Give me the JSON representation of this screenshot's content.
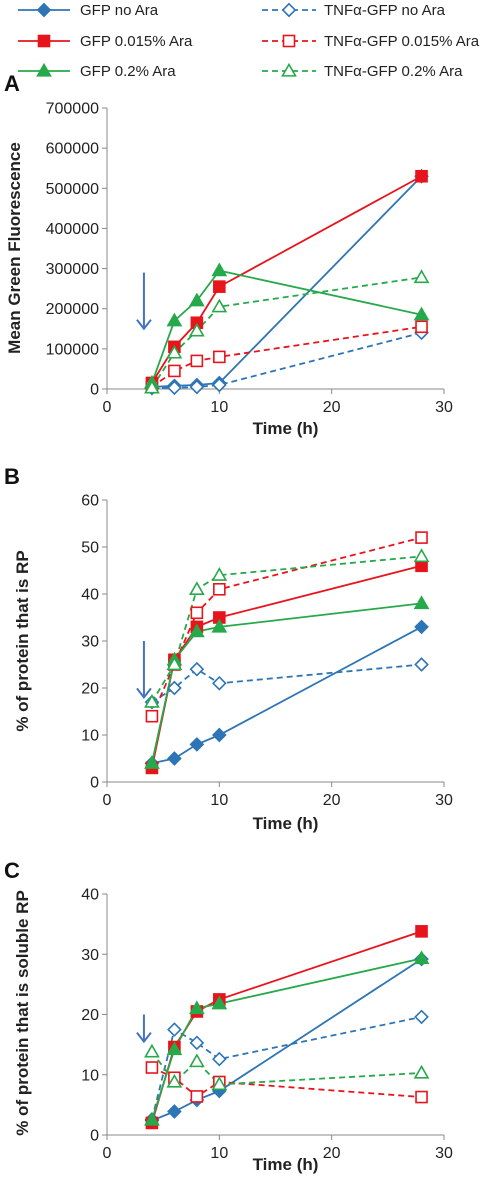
{
  "legend": [
    {
      "label": "GFP no Ara",
      "color": "#2E75B6",
      "marker": "diamond",
      "filled": true,
      "dashed": false
    },
    {
      "label": "TNFα-GFP no Ara",
      "color": "#2E75B6",
      "marker": "diamond",
      "filled": false,
      "dashed": true
    },
    {
      "label": "GFP 0.015% Ara",
      "color": "#E8141C",
      "marker": "square",
      "filled": true,
      "dashed": false
    },
    {
      "label": "TNFα-GFP 0.015% Ara",
      "color": "#E8141C",
      "marker": "square",
      "filled": false,
      "dashed": true
    },
    {
      "label": "GFP 0.2% Ara",
      "color": "#26A94A",
      "marker": "triangle",
      "filled": true,
      "dashed": false
    },
    {
      "label": "TNFα-GFP 0.2% Ara",
      "color": "#26A94A",
      "marker": "triangle",
      "filled": false,
      "dashed": true
    }
  ],
  "chart_data": [
    {
      "panel": "A",
      "type": "line",
      "xlabel": "Time (h)",
      "ylabel": "Mean Green Fluorescence",
      "xlim": [
        0,
        30
      ],
      "ylim": [
        0,
        700000
      ],
      "xticks": [
        0,
        10,
        20,
        30
      ],
      "yticks": [
        0,
        100000,
        200000,
        300000,
        400000,
        500000,
        600000,
        700000
      ],
      "arrow_at": {
        "x": 4,
        "y_from": 290000,
        "y_to": 150000
      },
      "series": [
        {
          "name": "GFP no Ara",
          "x": [
            4,
            6,
            8,
            10,
            28
          ],
          "y": [
            5000,
            8000,
            10000,
            15000,
            530000
          ]
        },
        {
          "name": "TNFα-GFP no Ara",
          "x": [
            4,
            6,
            8,
            10,
            28
          ],
          "y": [
            2000,
            3000,
            5000,
            10000,
            140000
          ]
        },
        {
          "name": "GFP 0.015% Ara",
          "x": [
            4,
            6,
            8,
            10,
            28
          ],
          "y": [
            15000,
            105000,
            165000,
            255000,
            530000
          ]
        },
        {
          "name": "TNFα-GFP 0.015% Ara",
          "x": [
            4,
            6,
            8,
            10,
            28
          ],
          "y": [
            5000,
            45000,
            70000,
            80000,
            155000
          ]
        },
        {
          "name": "GFP 0.2% Ara",
          "x": [
            4,
            6,
            8,
            10,
            28
          ],
          "y": [
            15000,
            170000,
            220000,
            295000,
            185000
          ]
        },
        {
          "name": "TNFα-GFP 0.2% Ara",
          "x": [
            4,
            6,
            8,
            10,
            28
          ],
          "y": [
            3000,
            90000,
            145000,
            205000,
            278000
          ]
        }
      ]
    },
    {
      "panel": "B",
      "type": "line",
      "xlabel": "Time (h)",
      "ylabel": "% of protein that is RP",
      "xlim": [
        0,
        30
      ],
      "ylim": [
        0,
        60
      ],
      "xticks": [
        0,
        10,
        20,
        30
      ],
      "yticks": [
        0,
        10,
        20,
        30,
        40,
        50,
        60
      ],
      "arrow_at": {
        "x": 4,
        "y_from": 30,
        "y_to": 18
      },
      "series": [
        {
          "name": "GFP no Ara",
          "x": [
            4,
            6,
            8,
            10,
            28
          ],
          "y": [
            4,
            5,
            8,
            10,
            33
          ]
        },
        {
          "name": "TNFα-GFP no Ara",
          "x": [
            4,
            6,
            8,
            10,
            28
          ],
          "y": [
            17,
            20,
            24,
            21,
            25
          ]
        },
        {
          "name": "GFP 0.015% Ara",
          "x": [
            4,
            6,
            8,
            10,
            28
          ],
          "y": [
            3,
            26,
            33,
            35,
            46
          ]
        },
        {
          "name": "TNFα-GFP 0.015% Ara",
          "x": [
            4,
            6,
            8,
            10,
            28
          ],
          "y": [
            14,
            25,
            36,
            41,
            52
          ]
        },
        {
          "name": "GFP 0.2% Ara",
          "x": [
            4,
            6,
            8,
            10,
            28
          ],
          "y": [
            4,
            26,
            32,
            33,
            38
          ]
        },
        {
          "name": "TNFα-GFP 0.2% Ara",
          "x": [
            4,
            6,
            8,
            10,
            28
          ],
          "y": [
            17,
            25,
            41,
            44,
            48
          ]
        }
      ]
    },
    {
      "panel": "C",
      "type": "line",
      "xlabel": "Time (h)",
      "ylabel": "% of protein that is soluble RP",
      "xlim": [
        0,
        30
      ],
      "ylim": [
        0,
        40
      ],
      "xticks": [
        0,
        10,
        20,
        30
      ],
      "yticks": [
        0,
        10,
        20,
        30,
        40
      ],
      "arrow_at": {
        "x": 4,
        "y_from": 20,
        "y_to": 15.5
      },
      "series": [
        {
          "name": "GFP no Ara",
          "x": [
            4,
            6,
            8,
            10,
            28
          ],
          "y": [
            2.4,
            3.9,
            5.8,
            7.3,
            29.2
          ]
        },
        {
          "name": "TNFα-GFP no Ara",
          "x": [
            4,
            6,
            8,
            10,
            28
          ],
          "y": [
            2.6,
            17.5,
            15.3,
            12.6,
            19.6
          ]
        },
        {
          "name": "GFP 0.015% Ara",
          "x": [
            4,
            6,
            8,
            10,
            28
          ],
          "y": [
            2.0,
            14.6,
            20.5,
            22.5,
            33.8
          ]
        },
        {
          "name": "TNFα-GFP 0.015% Ara",
          "x": [
            4,
            6,
            8,
            10,
            28
          ],
          "y": [
            11.2,
            9.5,
            6.4,
            8.8,
            6.3
          ]
        },
        {
          "name": "GFP 0.2% Ara",
          "x": [
            4,
            6,
            8,
            10,
            28
          ],
          "y": [
            2.5,
            14.2,
            21.0,
            21.8,
            29.3
          ]
        },
        {
          "name": "TNFα-GFP 0.2% Ara",
          "x": [
            4,
            6,
            8,
            10,
            28
          ],
          "y": [
            13.8,
            8.8,
            12.2,
            8.4,
            10.3
          ]
        }
      ]
    }
  ]
}
